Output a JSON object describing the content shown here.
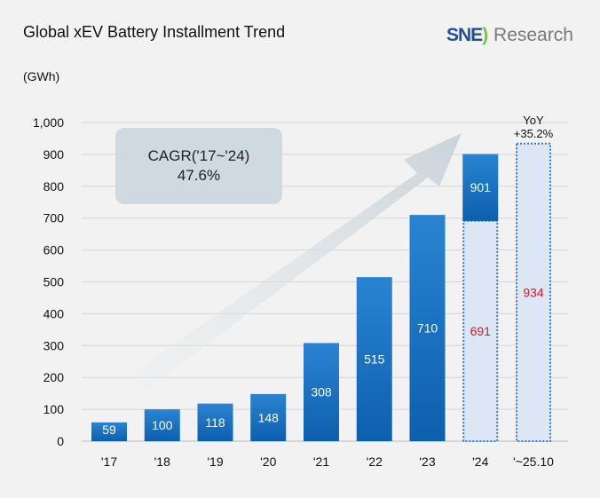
{
  "chart_data": {
    "type": "bar",
    "title": "Global xEV Battery Installment Trend",
    "ylabel": "(GWh)",
    "ylim": [
      0,
      1000
    ],
    "yticks": [
      "0",
      "100",
      "200",
      "300",
      "400",
      "500",
      "600",
      "700",
      "800",
      "900",
      "1,000"
    ],
    "grid": true,
    "categories": [
      "'17",
      "'18",
      "'19",
      "'20",
      "'21",
      "'22",
      "'23",
      "'24",
      "'~25.10"
    ],
    "values": [
      59,
      100,
      118,
      148,
      308,
      515,
      710,
      901,
      null
    ],
    "partial_values": [
      null,
      null,
      null,
      null,
      null,
      null,
      null,
      691,
      934
    ],
    "labels": [
      "59",
      "100",
      "118",
      "148",
      "308",
      "515",
      "710",
      "901",
      ""
    ],
    "partial_labels": [
      "",
      "",
      "",
      "",
      "",
      "",
      "",
      "691",
      "934"
    ],
    "annotations": {
      "cagr_label": "CAGR('17~'24)",
      "cagr_value": "47.6%",
      "yoy_label": "YoY",
      "yoy_value": "+35.2%"
    },
    "colors": {
      "bar_top": "#2a84d2",
      "bar_bottom": "#0d5fae",
      "partial_fill": "#dce6f5",
      "partial_border": "#2a7fd0",
      "partial_label": "#e0141e",
      "background": "#f2f2f2"
    }
  },
  "brand": {
    "logo_text_1": "SNE",
    "logo_text_2": "Research"
  }
}
